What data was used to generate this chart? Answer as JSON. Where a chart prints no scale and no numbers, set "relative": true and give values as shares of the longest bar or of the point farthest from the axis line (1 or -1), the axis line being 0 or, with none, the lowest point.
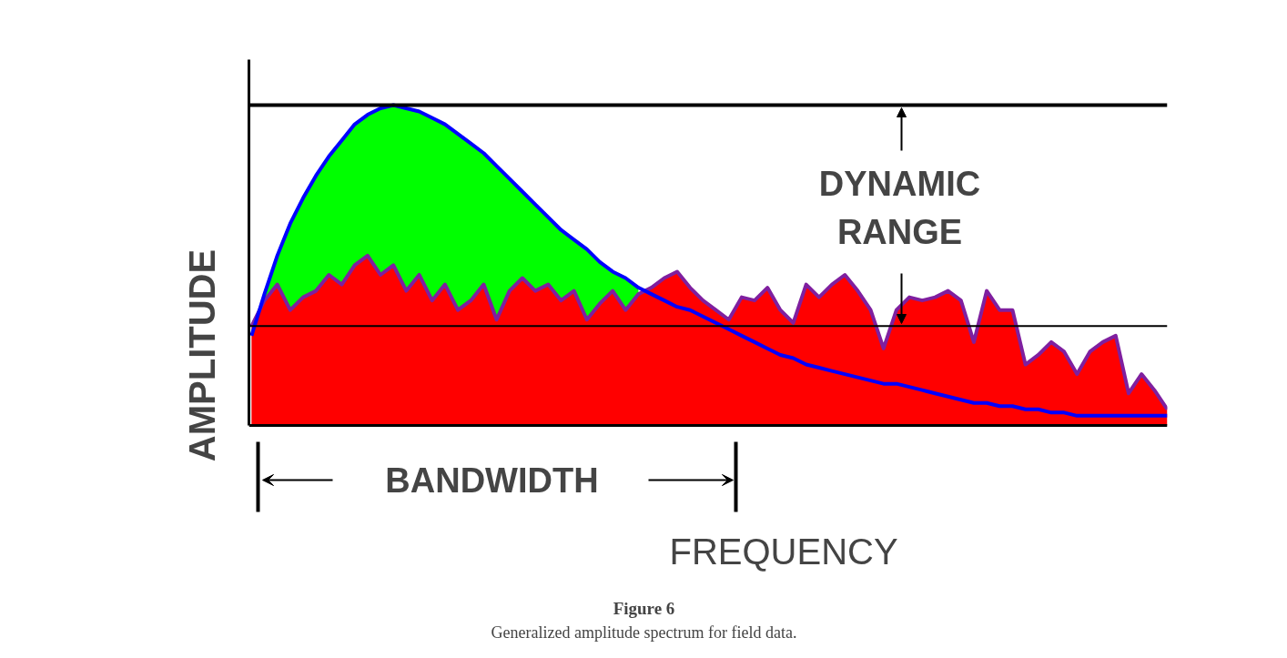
{
  "chart_data": {
    "type": "area",
    "relative": true,
    "title": "Figure 6",
    "subtitle": "Generalized amplitude spectrum for field data.",
    "xlabel": "FREQUENCY",
    "ylabel": "AMPLITUDE",
    "annotations": [
      "DYNAMIC RANGE",
      "BANDWIDTH"
    ],
    "categories": [
      null,
      null,
      null,
      null,
      null,
      null,
      null,
      null,
      null,
      null,
      null,
      null,
      null,
      null,
      null,
      null,
      null,
      null,
      null,
      null,
      null,
      null,
      null,
      null,
      null,
      null,
      null,
      null,
      null,
      null,
      null,
      null,
      null,
      null,
      null,
      null,
      null,
      null,
      null,
      null,
      null,
      null,
      null,
      null,
      null,
      null,
      null,
      null,
      null,
      null,
      null,
      null,
      null,
      null,
      null,
      null,
      null,
      null,
      null,
      null,
      null,
      null,
      null,
      null,
      null,
      null,
      null,
      null,
      null,
      null,
      null,
      null
    ],
    "ref_lines": [
      {
        "axis": "y",
        "value": 1.0,
        "label": null,
        "color": "#000000"
      },
      {
        "axis": "y",
        "value": 0.31,
        "label": null,
        "color": "#000000"
      }
    ],
    "series": [
      {
        "color": "#00ff00",
        "values": [
          null,
          0.41,
          0.53,
          0.63,
          0.71,
          0.78,
          0.84,
          0.89,
          0.94,
          0.97,
          0.99,
          1.0,
          0.99,
          0.98,
          0.96,
          0.94,
          0.91,
          0.88,
          0.85,
          0.81,
          0.77,
          0.73,
          0.69,
          0.65,
          0.61,
          0.58,
          0.55,
          0.51,
          0.48,
          0.46,
          0.43,
          null,
          null,
          null,
          null,
          null,
          null,
          null,
          null,
          null,
          null,
          null,
          null,
          null,
          null,
          null,
          null,
          null,
          null,
          null,
          null,
          null,
          null,
          null,
          null,
          null,
          null,
          null,
          null,
          null,
          null,
          null,
          null,
          null,
          null,
          null,
          null,
          null,
          null,
          null,
          null,
          null
        ]
      },
      {
        "color": "#ff0000",
        "values": [
          0.31,
          0.39,
          0.44,
          0.36,
          0.4,
          0.42,
          0.47,
          0.44,
          0.5,
          0.53,
          0.47,
          0.5,
          0.42,
          0.47,
          0.39,
          0.44,
          0.36,
          0.39,
          0.44,
          0.33,
          0.42,
          0.46,
          0.42,
          0.44,
          0.39,
          0.42,
          0.33,
          0.38,
          0.42,
          0.36,
          0.41,
          0.43,
          0.46,
          0.48,
          0.43,
          0.39,
          0.36,
          0.33,
          0.4,
          0.39,
          0.43,
          0.36,
          0.32,
          0.44,
          0.4,
          0.44,
          0.47,
          0.42,
          0.36,
          0.24,
          0.36,
          0.4,
          0.39,
          0.4,
          0.42,
          0.39,
          0.26,
          0.42,
          0.36,
          0.36,
          0.19,
          0.22,
          0.26,
          0.23,
          0.16,
          0.23,
          0.26,
          0.28,
          0.1,
          0.16,
          0.11,
          0.05
        ]
      },
      {
        "type": "line",
        "color": "#7f1f9f",
        "values": [
          0.31,
          0.39,
          0.44,
          0.36,
          0.4,
          0.42,
          0.47,
          0.44,
          0.5,
          0.53,
          0.47,
          0.5,
          0.42,
          0.47,
          0.39,
          0.44,
          0.36,
          0.39,
          0.44,
          0.33,
          0.42,
          0.46,
          0.42,
          0.44,
          0.39,
          0.42,
          0.33,
          0.38,
          0.42,
          0.36,
          0.41,
          0.43,
          0.46,
          0.48,
          0.43,
          0.39,
          0.36,
          0.33,
          0.4,
          0.39,
          0.43,
          0.36,
          0.32,
          0.44,
          0.4,
          0.44,
          0.47,
          0.42,
          0.36,
          0.24,
          0.36,
          0.4,
          0.39,
          0.4,
          0.42,
          0.39,
          0.26,
          0.42,
          0.36,
          0.36,
          0.19,
          0.22,
          0.26,
          0.23,
          0.16,
          0.23,
          0.26,
          0.28,
          0.1,
          0.16,
          0.11,
          0.05
        ]
      },
      {
        "type": "line",
        "color": "#0000ff",
        "values": [
          0.28,
          0.41,
          0.53,
          0.63,
          0.71,
          0.78,
          0.84,
          0.89,
          0.94,
          0.97,
          0.99,
          1.0,
          0.99,
          0.98,
          0.96,
          0.94,
          0.91,
          0.88,
          0.85,
          0.81,
          0.77,
          0.73,
          0.69,
          0.65,
          0.61,
          0.58,
          0.55,
          0.51,
          0.48,
          0.46,
          0.43,
          0.41,
          0.39,
          0.37,
          0.36,
          0.34,
          0.32,
          0.3,
          0.28,
          0.26,
          0.24,
          0.22,
          0.21,
          0.19,
          0.18,
          0.17,
          0.16,
          0.15,
          0.14,
          0.13,
          0.13,
          0.12,
          0.11,
          0.1,
          0.09,
          0.08,
          0.07,
          0.07,
          0.06,
          0.06,
          0.05,
          0.05,
          0.04,
          0.04,
          0.03,
          0.03,
          0.03,
          0.03,
          0.03,
          0.03,
          0.03,
          0.03
        ]
      }
    ]
  }
}
